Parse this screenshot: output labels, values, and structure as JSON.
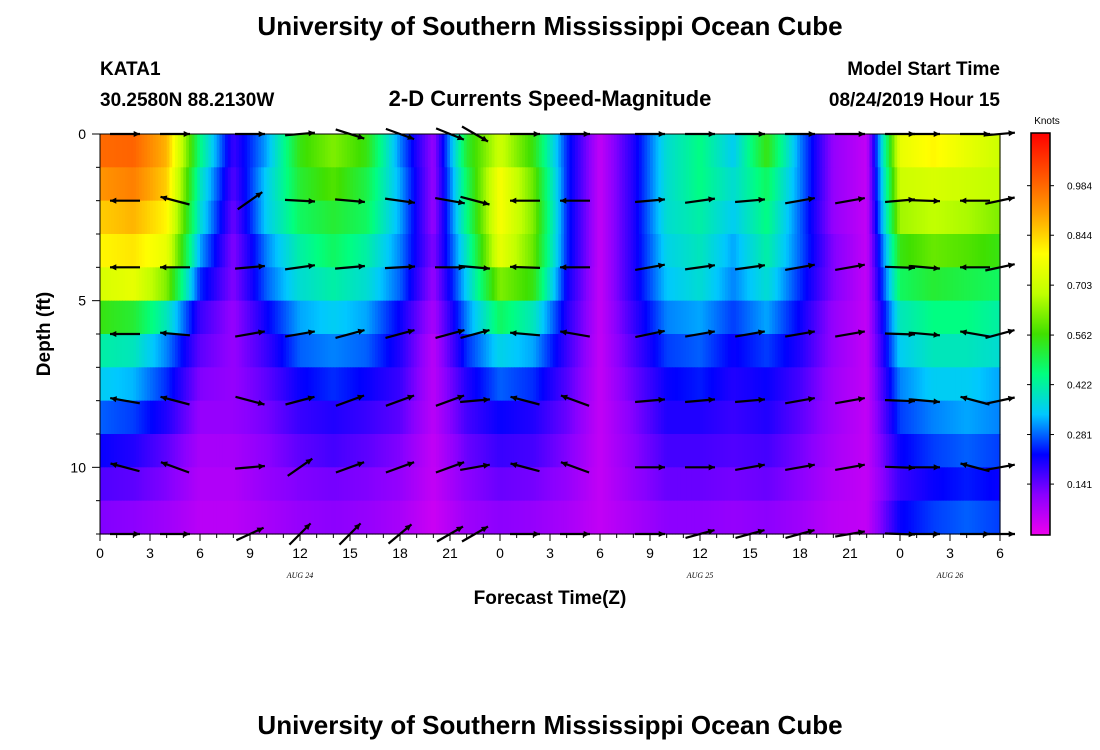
{
  "header": {
    "title_top": "University of Southern Mississippi Ocean Cube",
    "title_bottom": "University of Southern Mississippi Ocean Cube",
    "station": "KATA1",
    "coords": "30.2580N 88.2130W",
    "subtitle": "2-D Currents Speed-Magnitude",
    "model_label": "Model Start Time",
    "model_time": "08/24/2019 Hour 15"
  },
  "chart_data": {
    "type": "heatmap",
    "title": "2-D Currents Speed-Magnitude",
    "xlabel": "Forecast Time(Z)",
    "ylabel": "Depth (ft)",
    "xlim": [
      0,
      54
    ],
    "ylim": [
      0,
      12
    ],
    "y_inverted": true,
    "x_tick_labels": [
      "0",
      "3",
      "6",
      "9",
      "12",
      "15",
      "18",
      "21",
      "0",
      "3",
      "6",
      "9",
      "12",
      "15",
      "18",
      "21",
      "0",
      "3",
      "6"
    ],
    "y_tick_labels": [
      "0",
      "5",
      "10"
    ],
    "y_tick_values": [
      0,
      5,
      10
    ],
    "date_labels": [
      {
        "label": "AUG 24",
        "hour": 12
      },
      {
        "label": "AUG 25",
        "hour": 36
      },
      {
        "label": "AUG 26",
        "hour": 51
      }
    ],
    "depth_rows": [
      0.5,
      1.5,
      2.5,
      3.5,
      4.5,
      5.5,
      6.5,
      7.5,
      8.5,
      9.5,
      10.5,
      11.5
    ],
    "time_columns": [
      0,
      2,
      4,
      6,
      8,
      10,
      12,
      14,
      16,
      18,
      20,
      22,
      24,
      26,
      28,
      30,
      32,
      34,
      36,
      38,
      40,
      42,
      44,
      46,
      48,
      50,
      52,
      54
    ],
    "speed_knots": [
      [
        0.98,
        0.99,
        0.88,
        0.45,
        0.18,
        0.32,
        0.55,
        0.62,
        0.55,
        0.3,
        0.1,
        0.52,
        0.7,
        0.55,
        0.25,
        0.05,
        0.2,
        0.38,
        0.45,
        0.35,
        0.55,
        0.3,
        0.1,
        0.05,
        0.75,
        0.8,
        0.75,
        0.7
      ],
      [
        0.92,
        0.95,
        0.85,
        0.4,
        0.16,
        0.35,
        0.52,
        0.58,
        0.5,
        0.32,
        0.1,
        0.48,
        0.78,
        0.6,
        0.25,
        0.05,
        0.2,
        0.38,
        0.45,
        0.38,
        0.48,
        0.3,
        0.1,
        0.05,
        0.7,
        0.72,
        0.7,
        0.68
      ],
      [
        0.85,
        0.88,
        0.8,
        0.38,
        0.14,
        0.35,
        0.48,
        0.52,
        0.48,
        0.32,
        0.1,
        0.45,
        0.78,
        0.62,
        0.25,
        0.05,
        0.2,
        0.38,
        0.42,
        0.35,
        0.45,
        0.28,
        0.1,
        0.05,
        0.65,
        0.68,
        0.66,
        0.62
      ],
      [
        0.8,
        0.82,
        0.75,
        0.32,
        0.12,
        0.3,
        0.42,
        0.48,
        0.42,
        0.3,
        0.12,
        0.4,
        0.75,
        0.6,
        0.25,
        0.05,
        0.2,
        0.36,
        0.4,
        0.32,
        0.42,
        0.28,
        0.12,
        0.05,
        0.55,
        0.6,
        0.58,
        0.55
      ],
      [
        0.72,
        0.75,
        0.62,
        0.25,
        0.12,
        0.28,
        0.38,
        0.42,
        0.38,
        0.28,
        0.1,
        0.35,
        0.62,
        0.55,
        0.22,
        0.05,
        0.2,
        0.34,
        0.38,
        0.3,
        0.38,
        0.25,
        0.12,
        0.05,
        0.48,
        0.52,
        0.5,
        0.48
      ],
      [
        0.55,
        0.52,
        0.4,
        0.18,
        0.1,
        0.22,
        0.32,
        0.35,
        0.32,
        0.22,
        0.08,
        0.3,
        0.48,
        0.4,
        0.2,
        0.05,
        0.18,
        0.3,
        0.32,
        0.26,
        0.32,
        0.22,
        0.1,
        0.05,
        0.4,
        0.45,
        0.45,
        0.42
      ],
      [
        0.42,
        0.4,
        0.3,
        0.15,
        0.1,
        0.18,
        0.28,
        0.3,
        0.28,
        0.2,
        0.06,
        0.25,
        0.36,
        0.32,
        0.18,
        0.05,
        0.16,
        0.26,
        0.28,
        0.22,
        0.26,
        0.2,
        0.1,
        0.05,
        0.35,
        0.4,
        0.4,
        0.38
      ],
      [
        0.35,
        0.33,
        0.25,
        0.12,
        0.1,
        0.15,
        0.22,
        0.25,
        0.22,
        0.18,
        0.06,
        0.2,
        0.28,
        0.25,
        0.16,
        0.05,
        0.14,
        0.22,
        0.24,
        0.2,
        0.22,
        0.17,
        0.09,
        0.05,
        0.3,
        0.35,
        0.35,
        0.32
      ],
      [
        0.28,
        0.26,
        0.2,
        0.1,
        0.1,
        0.13,
        0.18,
        0.2,
        0.18,
        0.15,
        0.06,
        0.17,
        0.22,
        0.2,
        0.14,
        0.05,
        0.12,
        0.2,
        0.2,
        0.18,
        0.2,
        0.15,
        0.09,
        0.05,
        0.26,
        0.3,
        0.32,
        0.3
      ],
      [
        0.22,
        0.2,
        0.15,
        0.08,
        0.08,
        0.11,
        0.15,
        0.17,
        0.15,
        0.12,
        0.05,
        0.14,
        0.18,
        0.17,
        0.12,
        0.05,
        0.11,
        0.17,
        0.17,
        0.16,
        0.17,
        0.13,
        0.08,
        0.05,
        0.22,
        0.26,
        0.28,
        0.26
      ],
      [
        0.16,
        0.15,
        0.12,
        0.07,
        0.07,
        0.1,
        0.12,
        0.13,
        0.12,
        0.1,
        0.05,
        0.11,
        0.14,
        0.13,
        0.1,
        0.05,
        0.1,
        0.14,
        0.14,
        0.13,
        0.14,
        0.11,
        0.07,
        0.05,
        0.18,
        0.22,
        0.24,
        0.22
      ],
      [
        0.12,
        0.11,
        0.09,
        0.06,
        0.06,
        0.08,
        0.1,
        0.11,
        0.1,
        0.08,
        0.04,
        0.09,
        0.11,
        0.1,
        0.08,
        0.05,
        0.08,
        0.11,
        0.11,
        0.1,
        0.11,
        0.09,
        0.06,
        0.05,
        0.22,
        0.26,
        0.28,
        0.26
      ]
    ],
    "vectors": {
      "depths": [
        0,
        2,
        4,
        6,
        8,
        10,
        12
      ],
      "hours": [
        1.5,
        4.5,
        9,
        12,
        15,
        18,
        21,
        22.5,
        25.5,
        28.5,
        33,
        36,
        39,
        42,
        45,
        48,
        49.5,
        52.5,
        54
      ],
      "direction_deg": [
        [
          0,
          0,
          0,
          5,
          -18,
          -20,
          -22,
          -30,
          0,
          0,
          0,
          0,
          0,
          0,
          0,
          0,
          0,
          0,
          5
        ],
        [
          180,
          165,
          35,
          -3,
          -5,
          -8,
          -10,
          -15,
          180,
          180,
          5,
          8,
          5,
          10,
          10,
          5,
          -2,
          180,
          12
        ],
        [
          180,
          180,
          5,
          8,
          5,
          3,
          0,
          -5,
          178,
          180,
          10,
          8,
          8,
          10,
          10,
          -2,
          -5,
          180,
          12
        ],
        [
          180,
          175,
          10,
          10,
          15,
          15,
          15,
          15,
          175,
          170,
          12,
          10,
          10,
          10,
          10,
          -2,
          -5,
          170,
          15
        ],
        [
          170,
          165,
          -15,
          15,
          20,
          20,
          20,
          5,
          165,
          160,
          5,
          5,
          5,
          10,
          10,
          -2,
          -5,
          165,
          12
        ],
        [
          165,
          160,
          5,
          35,
          20,
          20,
          20,
          10,
          165,
          160,
          0,
          0,
          10,
          10,
          10,
          -2,
          0,
          165,
          10
        ],
        [
          0,
          0,
          25,
          45,
          45,
          40,
          30,
          30,
          0,
          0,
          0,
          15,
          15,
          15,
          10,
          -2,
          0,
          0,
          0
        ]
      ]
    },
    "colorbar": {
      "unit": "Knots",
      "min": 0,
      "max": 1.13,
      "tick_values": [
        0.984,
        0.844,
        0.703,
        0.562,
        0.422,
        0.281,
        0.141
      ],
      "tick_labels": [
        "0.984",
        "0.844",
        "0.703",
        "0.562",
        "0.422",
        "0.281",
        "0.141"
      ],
      "colors": [
        "#ee00ee",
        "#8a00ff",
        "#0000ff",
        "#00c8ff",
        "#00ff80",
        "#40e000",
        "#c0ff00",
        "#ffff00",
        "#ffa000",
        "#ff5000",
        "#ff0000"
      ]
    }
  }
}
